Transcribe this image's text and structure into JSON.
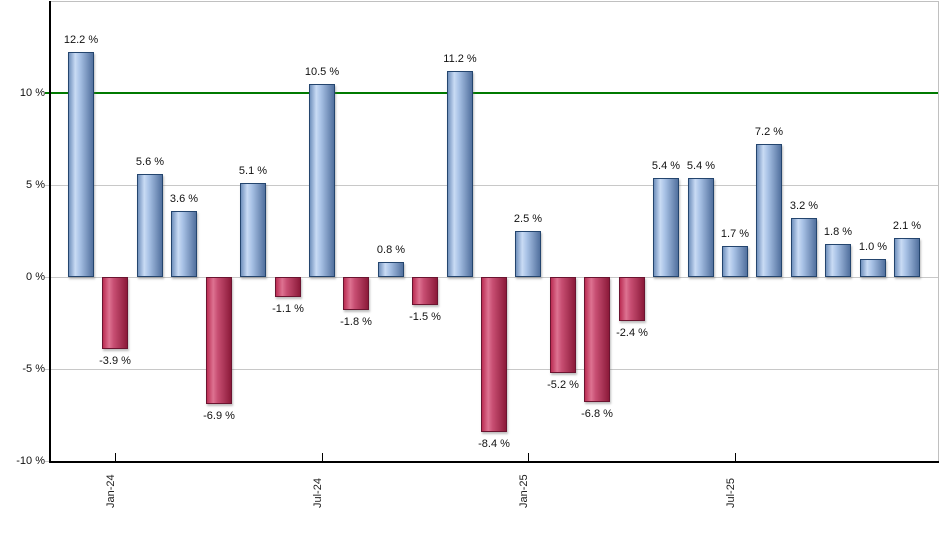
{
  "chart_data": {
    "type": "bar",
    "title": "",
    "xlabel": "",
    "ylabel": "",
    "values": [
      12.2,
      -3.9,
      5.6,
      3.6,
      -6.9,
      5.1,
      -1.1,
      10.5,
      -1.8,
      0.8,
      -1.5,
      11.2,
      -8.4,
      2.5,
      -5.2,
      -6.8,
      -2.4,
      5.4,
      5.4,
      1.7,
      7.2,
      3.2,
      1.8,
      1.0,
      2.1
    ],
    "value_label_suffix": " %",
    "x_ticks": [
      {
        "bar_index": 1,
        "label": "Jan-24"
      },
      {
        "bar_index": 7,
        "label": "Jul-24"
      },
      {
        "bar_index": 13,
        "label": "Jan-25"
      },
      {
        "bar_index": 19,
        "label": "Jul-25"
      }
    ],
    "y_ticks": [
      {
        "value": 10,
        "label": "10 %"
      },
      {
        "value": 5,
        "label": "5 %"
      },
      {
        "value": 0,
        "label": "0 %"
      },
      {
        "value": -5,
        "label": "-5 %"
      },
      {
        "value": -10,
        "label": "-10 %"
      }
    ],
    "ylim": [
      -10,
      15
    ],
    "grid": true,
    "legend": false,
    "reference_line": {
      "value": 10,
      "color": "#007a00"
    },
    "colors": {
      "positive_fill_start": "#7191bd",
      "positive_fill_light": "#c9dbf4",
      "positive_fill_mid": "#a9c2e6",
      "positive_fill_end": "#52719e",
      "positive_border": "#24456e",
      "negative_fill_start": "#bb2d53",
      "negative_fill_light": "#dd7291",
      "negative_fill_mid": "#c74e72",
      "negative_fill_end": "#8c1a3a",
      "negative_border": "#6b1430",
      "gridline": "#c8c8c8",
      "plot_border": "#c0c0c0",
      "axis": "#000000",
      "background": "#ffffff",
      "label_text": "#111111"
    }
  }
}
